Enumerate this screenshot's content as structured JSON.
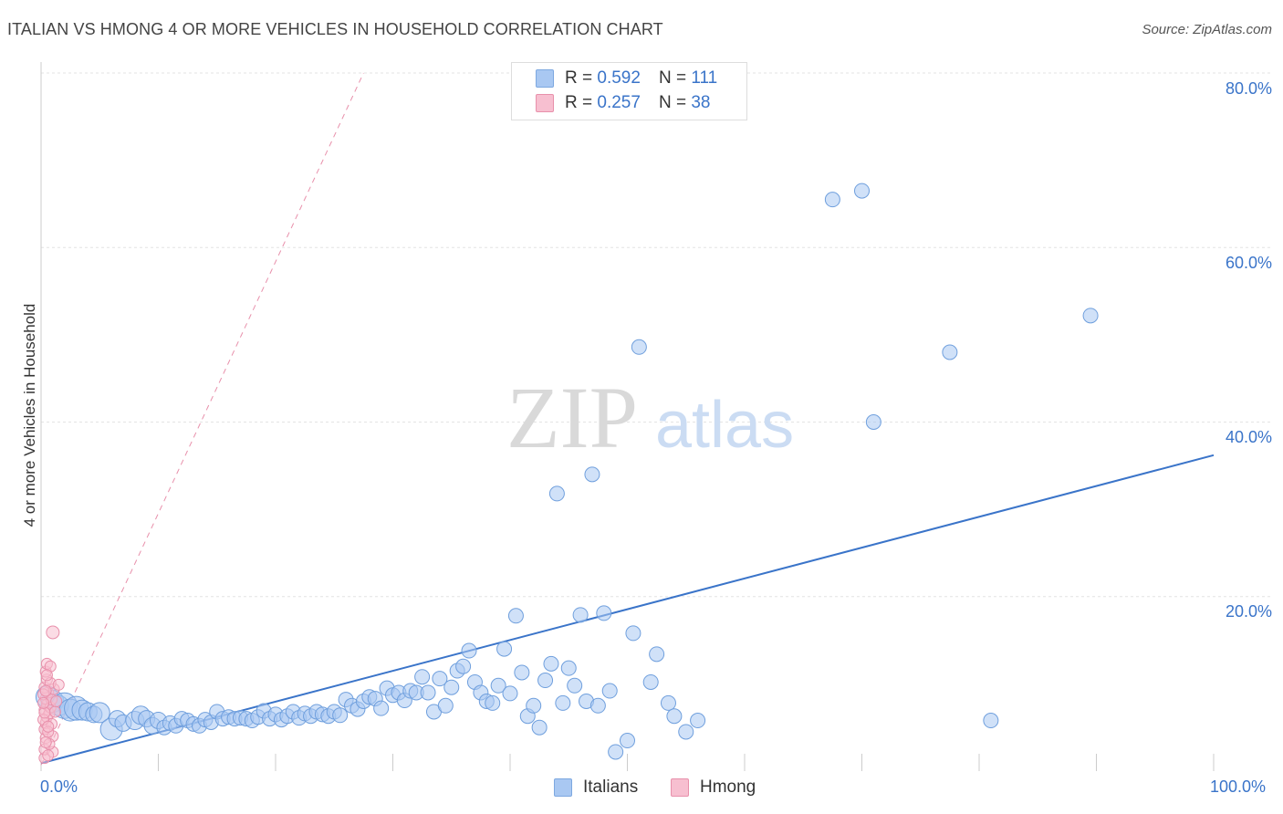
{
  "title": "ITALIAN VS HMONG 4 OR MORE VEHICLES IN HOUSEHOLD CORRELATION CHART",
  "source": "Source: ZipAtlas.com",
  "watermark": {
    "zip": "ZIP",
    "atlas": "atlas"
  },
  "legend": {
    "r_label": "R =",
    "n_label": "N =",
    "rows": [
      {
        "r": "0.592",
        "n": "111",
        "color": "#a9c8f2",
        "border": "#7da8e0"
      },
      {
        "r": "0.257",
        "n": "38",
        "color": "#f7bfd0",
        "border": "#e890ab"
      }
    ]
  },
  "bottom_legend": [
    {
      "label": "Italians",
      "color": "#a9c8f2",
      "border": "#7da8e0"
    },
    {
      "label": "Hmong",
      "color": "#f7bfd0",
      "border": "#e890ab"
    }
  ],
  "chart_data": {
    "type": "scatter",
    "title": "ITALIAN VS HMONG 4 OR MORE VEHICLES IN HOUSEHOLD CORRELATION CHART",
    "xlabel": "",
    "ylabel": "4 or more Vehicles in Household",
    "xlim": [
      0,
      100
    ],
    "ylim": [
      0,
      82
    ],
    "x_tick_labels": [
      "0.0%",
      "100.0%"
    ],
    "y_ticks": [
      20,
      40,
      60,
      80
    ],
    "y_tick_labels": [
      "20.0%",
      "40.0%",
      "60.0%",
      "80.0%"
    ],
    "grid": true,
    "legend_placement": "bottom-center",
    "series": [
      {
        "name": "Italians",
        "color": "#a9c8f2",
        "stroke": "#6f9fdd",
        "trend": {
          "x": [
            0,
            100
          ],
          "y": [
            0.9,
            36.2
          ],
          "color": "#3a74c9",
          "style": "solid"
        },
        "points": [
          [
            0.5,
            8.5,
            12
          ],
          [
            1,
            8,
            12
          ],
          [
            1.5,
            7.5,
            11
          ],
          [
            2,
            7.5,
            14
          ],
          [
            2.5,
            7,
            12
          ],
          [
            3,
            7.2,
            13
          ],
          [
            3.5,
            7,
            11
          ],
          [
            4,
            6.8,
            10
          ],
          [
            4.5,
            6.5,
            9
          ],
          [
            5,
            6.7,
            11
          ],
          [
            6,
            4.8,
            12
          ],
          [
            6.5,
            6,
            9
          ],
          [
            7,
            5.5,
            9
          ],
          [
            8,
            5.8,
            10
          ],
          [
            8.5,
            6.4,
            10
          ],
          [
            9,
            6,
            9
          ],
          [
            9.5,
            5.2,
            9
          ],
          [
            10,
            5.8,
            9
          ],
          [
            10.5,
            5,
            8
          ],
          [
            11,
            5.5,
            8
          ],
          [
            11.5,
            5.2,
            8
          ],
          [
            12,
            6,
            8
          ],
          [
            12.5,
            5.8,
            8
          ],
          [
            13,
            5.4,
            8
          ],
          [
            13.5,
            5.2,
            8
          ],
          [
            14,
            5.9,
            8
          ],
          [
            14.5,
            5.6,
            8
          ],
          [
            15,
            6.8,
            8
          ],
          [
            15.5,
            6,
            8
          ],
          [
            16,
            6.2,
            8
          ],
          [
            16.5,
            6,
            8
          ],
          [
            17,
            6.1,
            8
          ],
          [
            17.5,
            6,
            8
          ],
          [
            18,
            5.8,
            8
          ],
          [
            18.5,
            6.2,
            8
          ],
          [
            19,
            6.9,
            8
          ],
          [
            19.5,
            6,
            8
          ],
          [
            20,
            6.5,
            8
          ],
          [
            20.5,
            5.9,
            8
          ],
          [
            21,
            6.3,
            8
          ],
          [
            21.5,
            6.8,
            8
          ],
          [
            22,
            6.1,
            8
          ],
          [
            22.5,
            6.6,
            8
          ],
          [
            23,
            6.3,
            8
          ],
          [
            23.5,
            6.8,
            8
          ],
          [
            24,
            6.5,
            8
          ],
          [
            24.5,
            6.3,
            8
          ],
          [
            25,
            6.8,
            8
          ],
          [
            25.5,
            6.4,
            8
          ],
          [
            26,
            8.2,
            8
          ],
          [
            26.5,
            7.5,
            8
          ],
          [
            27,
            7.1,
            8
          ],
          [
            27.5,
            8,
            8
          ],
          [
            28,
            8.5,
            8
          ],
          [
            28.5,
            8.3,
            8
          ],
          [
            29,
            7.2,
            8
          ],
          [
            29.5,
            9.5,
            8
          ],
          [
            30,
            8.7,
            8
          ],
          [
            30.5,
            9,
            8
          ],
          [
            31,
            8.1,
            8
          ],
          [
            31.5,
            9.2,
            8
          ],
          [
            32,
            9,
            8
          ],
          [
            32.5,
            10.8,
            8
          ],
          [
            33,
            9,
            8
          ],
          [
            33.5,
            6.8,
            8
          ],
          [
            34,
            10.6,
            8
          ],
          [
            34.5,
            7.5,
            8
          ],
          [
            35,
            9.6,
            8
          ],
          [
            35.5,
            11.5,
            8
          ],
          [
            36,
            12,
            8
          ],
          [
            36.5,
            13.8,
            8
          ],
          [
            37,
            10.2,
            8
          ],
          [
            37.5,
            9,
            8
          ],
          [
            38,
            8,
            8
          ],
          [
            38.5,
            7.8,
            8
          ],
          [
            39,
            9.8,
            8
          ],
          [
            39.5,
            14,
            8
          ],
          [
            40,
            8.9,
            8
          ],
          [
            40.5,
            17.8,
            8
          ],
          [
            41,
            11.3,
            8
          ],
          [
            41.5,
            6.3,
            8
          ],
          [
            42,
            7.5,
            8
          ],
          [
            42.5,
            5,
            8
          ],
          [
            43,
            10.4,
            8
          ],
          [
            43.5,
            12.3,
            8
          ],
          [
            44,
            31.8,
            8
          ],
          [
            44.5,
            7.8,
            8
          ],
          [
            45,
            11.8,
            8
          ],
          [
            45.5,
            9.8,
            8
          ],
          [
            46,
            17.9,
            8
          ],
          [
            46.5,
            8,
            8
          ],
          [
            47,
            34,
            8
          ],
          [
            47.5,
            7.5,
            8
          ],
          [
            48,
            18.1,
            8
          ],
          [
            48.5,
            9.2,
            8
          ],
          [
            49,
            2.2,
            8
          ],
          [
            50,
            3.5,
            8
          ],
          [
            50.5,
            15.8,
            8
          ],
          [
            51,
            48.6,
            8
          ],
          [
            52,
            10.2,
            8
          ],
          [
            52.5,
            13.4,
            8
          ],
          [
            53.5,
            7.8,
            8
          ],
          [
            54,
            6.3,
            8
          ],
          [
            55,
            4.5,
            8
          ],
          [
            56,
            5.8,
            8
          ],
          [
            67.5,
            65.5,
            8
          ],
          [
            70,
            66.5,
            8
          ],
          [
            71,
            40,
            8
          ],
          [
            77.5,
            48,
            8
          ],
          [
            81,
            5.8,
            8
          ],
          [
            89.5,
            52.2,
            8
          ]
        ]
      },
      {
        "name": "Hmong",
        "color": "#f7bfd0",
        "stroke": "#e890ab",
        "trend": {
          "x": [
            0,
            27.5
          ],
          "y": [
            0.7,
            80
          ],
          "color": "#e890ab",
          "style": "dashed"
        },
        "points": [
          [
            0.3,
            1.5,
            6
          ],
          [
            0.3,
            2.5,
            6
          ],
          [
            0.4,
            3.8,
            6
          ],
          [
            0.3,
            4.8,
            6
          ],
          [
            0.4,
            5.5,
            6
          ],
          [
            0.5,
            6.2,
            6
          ],
          [
            0.3,
            7,
            6
          ],
          [
            0.5,
            7.6,
            6
          ],
          [
            0.4,
            8.3,
            6
          ],
          [
            0.6,
            9,
            6
          ],
          [
            0.3,
            9.6,
            6
          ],
          [
            0.5,
            10.5,
            6
          ],
          [
            0.4,
            11.4,
            6
          ],
          [
            0.5,
            12.3,
            6
          ],
          [
            0.8,
            12,
            6
          ],
          [
            0.7,
            6.6,
            6
          ],
          [
            0.8,
            7.3,
            6
          ],
          [
            0.9,
            5.4,
            6
          ],
          [
            1,
            4,
            6
          ],
          [
            1,
            2.2,
            6
          ],
          [
            0.6,
            1.8,
            6
          ],
          [
            0.7,
            3.1,
            6
          ],
          [
            0.2,
            5.9,
            6
          ],
          [
            0.2,
            8.8,
            6
          ],
          [
            0.9,
            8.2,
            6
          ],
          [
            1.1,
            9.4,
            6
          ],
          [
            1.2,
            6.8,
            6
          ],
          [
            0.6,
            4.5,
            6
          ],
          [
            0.4,
            3.3,
            6
          ],
          [
            0.3,
            6.7,
            6
          ],
          [
            0.8,
            10.1,
            6
          ],
          [
            1,
            15.9,
            7
          ],
          [
            0.5,
            11,
            6
          ],
          [
            1.3,
            8,
            6
          ],
          [
            0.2,
            7.8,
            6
          ],
          [
            0.4,
            9.2,
            6
          ],
          [
            0.6,
            5.1,
            6
          ],
          [
            1.5,
            9.9,
            6
          ]
        ]
      }
    ]
  }
}
